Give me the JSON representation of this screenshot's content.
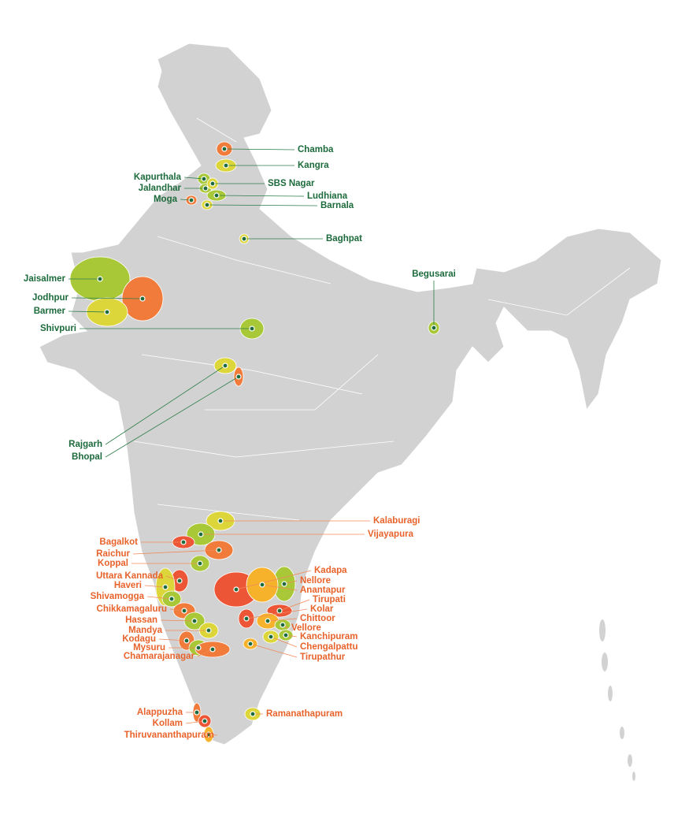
{
  "north_districts": [
    "Chamba",
    "Kangra",
    "Kapurthala",
    "Jalandhar",
    "SBS Nagar",
    "Ludhiana",
    "Moga",
    "Barnala",
    "Baghpat",
    "Jaisalmer",
    "Jodhpur",
    "Barmer",
    "Shivpuri",
    "Begusarai",
    "Rajgarh",
    "Bhopal"
  ],
  "south_districts": [
    "Kalaburagi",
    "Vijayapura",
    "Bagalkot",
    "Raichur",
    "Koppal",
    "Uttara Kannada",
    "Haveri",
    "Shivamogga",
    "Chikkamagaluru",
    "Hassan",
    "Mandya",
    "Kodagu",
    "Mysuru",
    "Chamarajanagar",
    "Kadapa",
    "Nellore",
    "Anantapur",
    "Tirupati",
    "Kolar",
    "Chittoor",
    "Vellore",
    "Kanchipuram",
    "Chengalpattu",
    "Tirupathur",
    "Ramanathapuram",
    "Alappuzha",
    "Kollam",
    "Thiruvananthapuram"
  ]
}
